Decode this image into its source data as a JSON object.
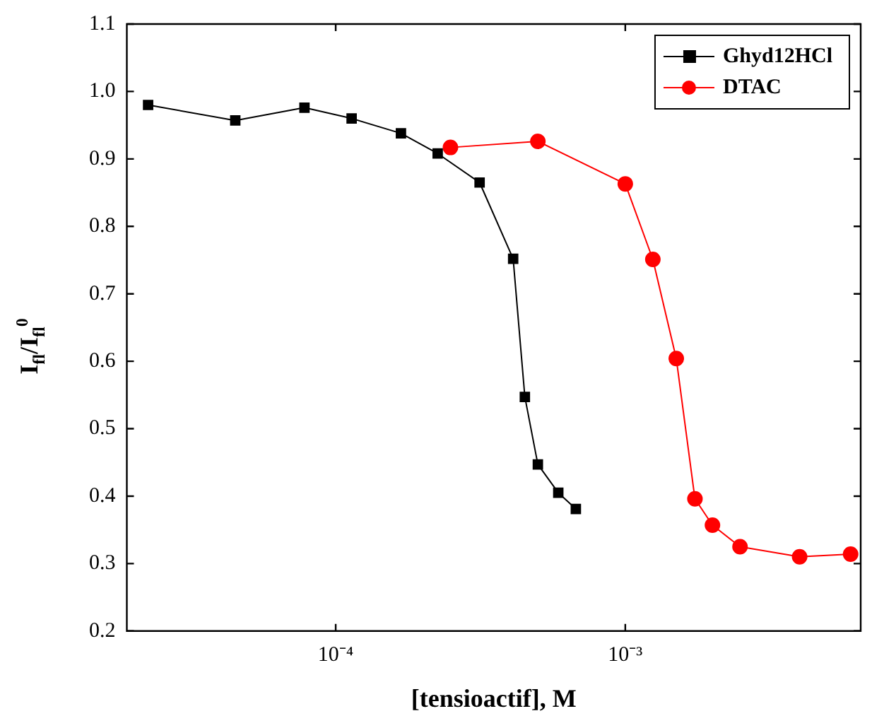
{
  "chart_data": {
    "type": "line",
    "xlabel": "[tensioactif], M",
    "ylabel": "I$_{fl}$/I$_{fl}$$^{0}$",
    "log": "x",
    "xlim": [
      1.9e-05,
      0.0065
    ],
    "xticks": [
      {
        "value": 0.0001,
        "label": "10⁻⁴"
      },
      {
        "value": 0.001,
        "label": "10⁻³"
      }
    ],
    "ylim": [
      0.2,
      1.1
    ],
    "yticks": [
      0.2,
      0.3,
      0.4,
      0.5,
      0.6,
      0.7,
      0.8,
      0.9,
      {
        "value": 1,
        "label": "1.0"
      },
      1.1
    ],
    "grid": false,
    "legend": "top right",
    "series": [
      {
        "name": "Ghyd12HCl",
        "color": "#000000",
        "marker": "square",
        "x": [
          2.25e-05,
          4.5e-05,
          7.8e-05,
          0.0001135,
          0.000168,
          0.000225,
          0.000314,
          0.00041,
          0.00045,
          0.000499,
          0.000587,
          0.000675
        ],
        "values": [
          0.98,
          0.957,
          0.976,
          0.96,
          0.938,
          0.908,
          0.865,
          0.752,
          0.547,
          0.447,
          0.405,
          0.381
        ]
      },
      {
        "name": "DTAC",
        "color": "#ff0000",
        "marker": "circle",
        "x": [
          0.000249,
          0.000499,
          0.001,
          0.001245,
          0.0015,
          0.00174,
          0.002,
          0.00249,
          0.004,
          0.006
        ],
        "values": [
          0.917,
          0.926,
          0.863,
          0.751,
          0.604,
          0.396,
          0.357,
          0.325,
          0.31,
          0.314
        ]
      }
    ]
  }
}
